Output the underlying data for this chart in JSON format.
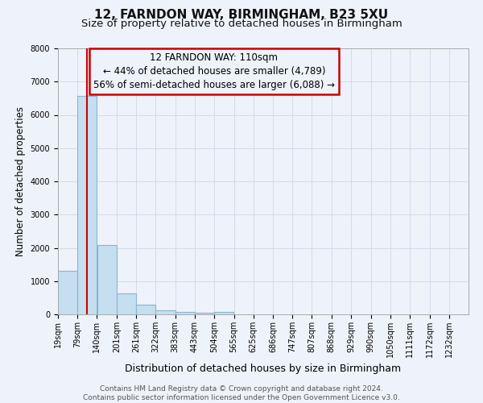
{
  "title_line1": "12, FARNDON WAY, BIRMINGHAM, B23 5XU",
  "title_line2": "Size of property relative to detached houses in Birmingham",
  "xlabel": "Distribution of detached houses by size in Birmingham",
  "ylabel": "Number of detached properties",
  "bar_left_edges": [
    19,
    79,
    140,
    201,
    261,
    322,
    383,
    443,
    504,
    565,
    625,
    686,
    747,
    807,
    868,
    929,
    990,
    1050,
    1111,
    1172
  ],
  "bar_heights": [
    1300,
    6560,
    2080,
    640,
    300,
    130,
    80,
    60,
    80,
    0,
    0,
    0,
    0,
    0,
    0,
    0,
    0,
    0,
    0,
    0
  ],
  "bin_width": 61,
  "bar_color": "#c5dff0",
  "bar_edge_color": "#8ab4d4",
  "property_size": 110,
  "vline_color": "#cc0000",
  "annotation_line1": "12 FARNDON WAY: 110sqm",
  "annotation_line2": "← 44% of detached houses are smaller (4,789)",
  "annotation_line3": "56% of semi-detached houses are larger (6,088) →",
  "annotation_box_color": "#cc0000",
  "annotation_fontsize": 8.5,
  "ylim": [
    0,
    8000
  ],
  "yticks": [
    0,
    1000,
    2000,
    3000,
    4000,
    5000,
    6000,
    7000,
    8000
  ],
  "xtick_labels": [
    "19sqm",
    "79sqm",
    "140sqm",
    "201sqm",
    "261sqm",
    "322sqm",
    "383sqm",
    "443sqm",
    "504sqm",
    "565sqm",
    "625sqm",
    "686sqm",
    "747sqm",
    "807sqm",
    "868sqm",
    "929sqm",
    "990sqm",
    "1050sqm",
    "1111sqm",
    "1172sqm",
    "1232sqm"
  ],
  "xtick_positions": [
    19,
    79,
    140,
    201,
    261,
    322,
    383,
    443,
    504,
    565,
    625,
    686,
    747,
    807,
    868,
    929,
    990,
    1050,
    1111,
    1172,
    1232
  ],
  "xlim_left": 19,
  "xlim_right": 1293,
  "grid_color": "#d0d8e8",
  "background_color": "#eef2fa",
  "footer_text": "Contains HM Land Registry data © Crown copyright and database right 2024.\nContains public sector information licensed under the Open Government Licence v3.0.",
  "title_fontsize": 11,
  "subtitle_fontsize": 9.5,
  "tick_fontsize": 7,
  "ylabel_fontsize": 8.5,
  "xlabel_fontsize": 9,
  "footer_fontsize": 6.5
}
